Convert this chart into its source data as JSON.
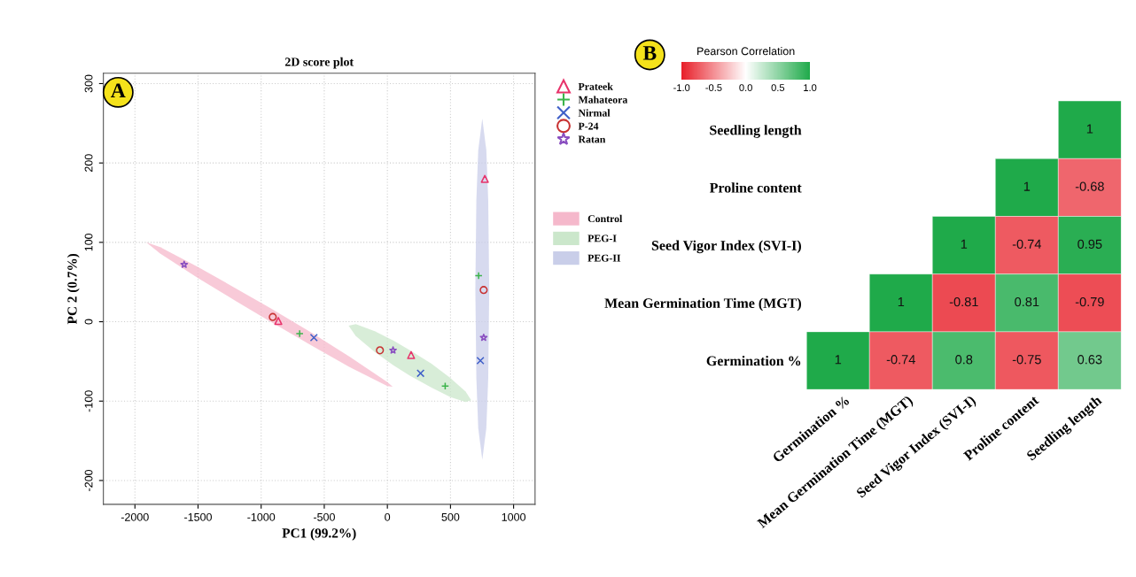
{
  "chart_data": [
    {
      "type": "scatter",
      "title": "2D score plot",
      "xlabel": "PC1 (99.2%)",
      "ylabel": "PC 2 (0.7%)",
      "annotations": [
        "A"
      ],
      "xlim": [
        -2250,
        1170
      ],
      "ylim": [
        -230,
        313
      ],
      "xticks": [
        -2000,
        -1500,
        -1000,
        -500,
        0,
        500,
        1000
      ],
      "yticks": [
        -200,
        -100,
        0,
        100,
        200,
        300
      ],
      "grid": true,
      "legend": "top right",
      "series": [
        {
          "name": "Control",
          "type": "area",
          "color": "#f5b8cb",
          "x": [
            -1911,
            -1800,
            -1500,
            -1200,
            -935,
            -600,
            -300,
            0,
            42,
            0,
            -300,
            -600,
            -935,
            -1200,
            -1500,
            -1800
          ],
          "values": [
            100,
            94,
            69,
            42,
            18,
            -14,
            -44,
            -76,
            -82,
            -81,
            -57,
            -30,
            1,
            26,
            55,
            86
          ]
        },
        {
          "name": "PEG-I",
          "type": "area",
          "color": "#cbe7cb",
          "x": [
            -307,
            -250,
            -100,
            50,
            178,
            350,
            500,
            620,
            664,
            620,
            500,
            350,
            178,
            50,
            -100,
            -250
          ],
          "values": [
            -5,
            -3,
            -12,
            -24,
            -36,
            -53,
            -71,
            -88,
            -99,
            -101,
            -95,
            -83,
            -68,
            -55,
            -38,
            -18
          ]
        },
        {
          "name": "PEG-II",
          "type": "area",
          "color": "#c9cee9",
          "x": [
            697,
            705,
            720,
            752,
            784,
            799,
            807,
            799,
            784,
            752,
            720,
            705
          ],
          "values": [
            41,
            153,
            216,
            256,
            216,
            153,
            41,
            -71,
            -134,
            -174,
            -134,
            -71
          ]
        },
        {
          "name": "Prateek",
          "marker": "triangle",
          "color": "#e8336b",
          "x": [
            -864,
            188,
            772
          ],
          "values": [
            1,
            -42,
            180
          ]
        },
        {
          "name": "Mahateora",
          "marker": "plus",
          "color": "#3cb44b",
          "x": [
            -695,
            458,
            723
          ],
          "values": [
            -15,
            -81,
            58
          ]
        },
        {
          "name": "Nirmal",
          "marker": "cross",
          "color": "#3f5fc8",
          "x": [
            -582,
            263,
            737
          ],
          "values": [
            -20,
            -65,
            -49
          ]
        },
        {
          "name": "P-24",
          "marker": "circle",
          "color": "#c83232",
          "x": [
            -908,
            -59,
            763
          ],
          "values": [
            6,
            -36,
            40
          ]
        },
        {
          "name": "Ratan",
          "marker": "star",
          "color": "#8a4fc0",
          "x": [
            -1610,
            45,
            763
          ],
          "values": [
            72,
            -36,
            -20
          ]
        }
      ]
    },
    {
      "type": "heatmap",
      "annotations": [
        "B"
      ],
      "clabel": "Pearson Correlation",
      "clim": [
        -1,
        1
      ],
      "cticks": [
        {
          "value": -1,
          "label": "-1.0"
        },
        {
          "value": -0.5,
          "label": "-0.5"
        },
        {
          "value": 0,
          "label": "0.0"
        },
        {
          "value": 0.5,
          "label": "0.5"
        },
        {
          "value": 1,
          "label": "1.0"
        }
      ],
      "data_labels": true,
      "categories": [
        "Germination %",
        "Mean Germination Time (MGT)",
        "Seed Vigor Index (SVI-I)",
        "Proline content",
        "Seedling length"
      ],
      "y_categories": [
        "Seedling length",
        "Proline content",
        "Seed Vigor Index (SVI-I)",
        "Mean Germination Time (MGT)",
        "Germination %"
      ],
      "cells": [
        [
          null,
          null,
          null,
          null,
          1
        ],
        [
          null,
          null,
          null,
          1,
          -0.68
        ],
        [
          null,
          null,
          1,
          -0.74,
          0.95
        ],
        [
          null,
          1,
          -0.81,
          0.81,
          -0.79
        ],
        [
          1,
          -0.74,
          0.8,
          -0.75,
          0.63
        ]
      ]
    }
  ]
}
